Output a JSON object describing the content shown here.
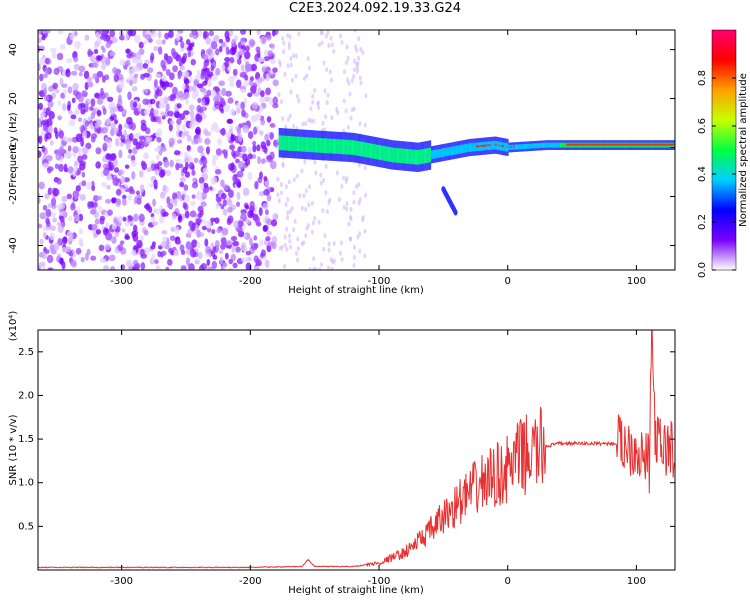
{
  "title": "C2E3.2024.092.19.33.G24",
  "colors": {
    "snr_line": "#e83030",
    "axis": "#000000"
  },
  "chart_data": [
    {
      "type": "heatmap",
      "xlabel": "Height of straight line (km)",
      "ylabel": "Frequency (Hz)",
      "xlim": [
        -365,
        130
      ],
      "ylim": [
        -50,
        48
      ],
      "xticks": [
        -300,
        -200,
        -100,
        0,
        100
      ],
      "xtick_labels": [
        "-300",
        "-200",
        "-100",
        "0",
        "100"
      ],
      "yticks": [
        -40,
        -20,
        0,
        20,
        40
      ],
      "ytick_labels": [
        "-40",
        "-20",
        "0",
        "20",
        "40"
      ],
      "colorbar": {
        "label": "Normalized spectral amplitude",
        "range": [
          0,
          1
        ],
        "ticks": [
          0.0,
          0.2,
          0.4,
          0.6,
          0.8
        ],
        "tick_labels": [
          "0.0",
          "0.2",
          "0.4",
          "0.6",
          "0.8"
        ],
        "colormap": [
          "#ffffff",
          "#7a00ff",
          "#0000ff",
          "#00d0ff",
          "#00ff40",
          "#c8ff00",
          "#ffa000",
          "#ff0000",
          "#ff0070"
        ]
      },
      "features": {
        "noise_region_x": [
          -365,
          -180
        ],
        "sparse_noise_x": [
          -180,
          -110
        ],
        "signal_start_x": -178,
        "signal_track": {
          "x": [
            -178,
            -150,
            -120,
            -90,
            -70,
            -50,
            -30,
            -10,
            0,
            30,
            60,
            90,
            110,
            130
          ],
          "y": [
            2,
            1,
            0,
            -3,
            -4,
            -2,
            0,
            1,
            0,
            1,
            1,
            1,
            1,
            1
          ]
        },
        "branch": {
          "x": [
            -50,
            -40
          ],
          "y": [
            -17,
            -27
          ]
        }
      }
    },
    {
      "type": "line",
      "xlabel": "Height of straight line (km)",
      "ylabel": "SNR (10 * v/v)",
      "multiplier_label": "(x10⁴)",
      "xlim": [
        -365,
        130
      ],
      "ylim": [
        0,
        2.75
      ],
      "xticks": [
        -300,
        -200,
        -100,
        0,
        100
      ],
      "xtick_labels": [
        "-300",
        "-200",
        "-100",
        "0",
        "100"
      ],
      "yticks": [
        0.5,
        1.0,
        1.5,
        2.0,
        2.5
      ],
      "ytick_labels": [
        "0.5",
        "1.0",
        "1.5",
        "2.0",
        "2.5"
      ],
      "series": [
        {
          "x": [
            -365,
            -300,
            -200,
            -160,
            -155,
            -150,
            -120,
            -100,
            -80,
            -60,
            -40,
            -20,
            0,
            10,
            20,
            30,
            40,
            60,
            80,
            90,
            100,
            105,
            110,
            112,
            115,
            120,
            130
          ],
          "y": [
            0.03,
            0.03,
            0.03,
            0.04,
            0.12,
            0.04,
            0.04,
            0.08,
            0.2,
            0.45,
            0.75,
            1.0,
            1.15,
            1.3,
            1.35,
            1.42,
            1.45,
            1.45,
            1.45,
            1.45,
            1.4,
            1.3,
            1.2,
            2.75,
            1.45,
            1.4,
            1.38
          ]
        }
      ]
    }
  ]
}
